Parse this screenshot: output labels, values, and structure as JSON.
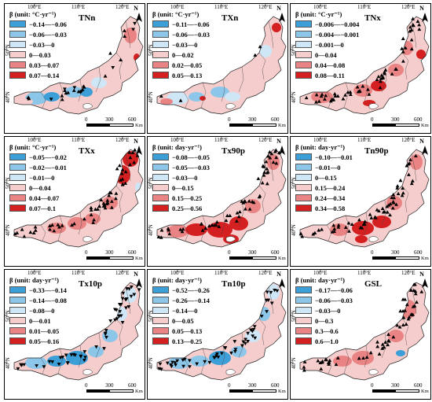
{
  "common": {
    "longitudes": [
      "100°E",
      "110°E",
      "120°E"
    ],
    "latitudes": [
      "50°N",
      "40°N"
    ],
    "north": "N",
    "scale": {
      "labels": [
        "0",
        "300",
        "600"
      ],
      "unit": "Km"
    }
  },
  "panels": [
    {
      "title": "TNn",
      "legend_title": "β (unit: °C·yr⁻¹)",
      "classes": [
        {
          "label": "−0.14—−0.06",
          "color": "#3d9fd8"
        },
        {
          "label": "−0.06—−0.03",
          "color": "#8cc7ea"
        },
        {
          "label": "−0.03—0",
          "color": "#cfe6f6"
        },
        {
          "label": "0—0.03",
          "color": "#f6cdcd"
        },
        {
          "label": "0.03—0.07",
          "color": "#ea8484"
        },
        {
          "label": "0.07—0.14",
          "color": "#d42020"
        }
      ],
      "markers": "mixed"
    },
    {
      "title": "TXn",
      "legend_title": "β (unit: °C·yr⁻¹)",
      "classes": [
        {
          "label": "−0.11—−0.06",
          "color": "#3d9fd8"
        },
        {
          "label": "−0.06—−0.03",
          "color": "#8cc7ea"
        },
        {
          "label": "−0.03—0",
          "color": "#cfe6f6"
        },
        {
          "label": "0—0.02",
          "color": "#f6cdcd"
        },
        {
          "label": "0.02—0.05",
          "color": "#ea8484"
        },
        {
          "label": "0.05—0.13",
          "color": "#d42020"
        }
      ],
      "markers": "sparse"
    },
    {
      "title": "TNx",
      "legend_title": "β (unit: °C·yr⁻¹)",
      "classes": [
        {
          "label": "−0.006—−0.004",
          "color": "#3d9fd8"
        },
        {
          "label": "−0.004—−0.001",
          "color": "#8cc7ea"
        },
        {
          "label": "−0.001—0",
          "color": "#cfe6f6"
        },
        {
          "label": "0—0.04",
          "color": "#f6cdcd"
        },
        {
          "label": "0.04—0.08",
          "color": "#ea8484"
        },
        {
          "label": "0.08—0.11",
          "color": "#d42020"
        }
      ],
      "markers": "up"
    },
    {
      "title": "TXx",
      "legend_title": "β (unit: °C·yr⁻¹)",
      "classes": [
        {
          "label": "−0.05—−0.02",
          "color": "#3d9fd8"
        },
        {
          "label": "−0.02—−0.01",
          "color": "#8cc7ea"
        },
        {
          "label": "−0.01—0",
          "color": "#cfe6f6"
        },
        {
          "label": "0—0.04",
          "color": "#f6cdcd"
        },
        {
          "label": "0.04—0.07",
          "color": "#ea8484"
        },
        {
          "label": "0.07—0.1",
          "color": "#d42020"
        }
      ],
      "markers": "up"
    },
    {
      "title": "Tx90p",
      "legend_title": "β (unit: day·yr⁻¹)",
      "classes": [
        {
          "label": "−0.08—−0.05",
          "color": "#3d9fd8"
        },
        {
          "label": "−0.05—−0.03",
          "color": "#8cc7ea"
        },
        {
          "label": "−0.03—0",
          "color": "#cfe6f6"
        },
        {
          "label": "0—0.15",
          "color": "#f6cdcd"
        },
        {
          "label": "0.15—0.25",
          "color": "#ea8484"
        },
        {
          "label": "0.25—0.56",
          "color": "#d42020"
        }
      ],
      "markers": "up"
    },
    {
      "title": "Tn90p",
      "legend_title": "β (unit: day·yr⁻¹)",
      "classes": [
        {
          "label": "−0.10—−0.01",
          "color": "#3d9fd8"
        },
        {
          "label": "−0.01—0",
          "color": "#8cc7ea"
        },
        {
          "label": "0—0.15",
          "color": "#cfe6f6"
        },
        {
          "label": "0.15—0.24",
          "color": "#f6cdcd"
        },
        {
          "label": "0.24—0.34",
          "color": "#ea8484"
        },
        {
          "label": "0.34—0.58",
          "color": "#d42020"
        }
      ],
      "markers": "up"
    },
    {
      "title": "Tx10p",
      "legend_title": "β (unit: day·yr⁻¹)",
      "classes": [
        {
          "label": "−0.33—−0.14",
          "color": "#3d9fd8"
        },
        {
          "label": "−0.14—−0.08",
          "color": "#8cc7ea"
        },
        {
          "label": "−0.08—0",
          "color": "#cfe6f6"
        },
        {
          "label": "0—0.01",
          "color": "#f6cdcd"
        },
        {
          "label": "0.01—0.05",
          "color": "#ea8484"
        },
        {
          "label": "0.05—0.16",
          "color": "#d42020"
        }
      ],
      "markers": "down"
    },
    {
      "title": "Tn10p",
      "legend_title": "β (unit: day·yr⁻¹)",
      "classes": [
        {
          "label": "−0.52—−0.26",
          "color": "#3d9fd8"
        },
        {
          "label": "−0.26—−0.14",
          "color": "#8cc7ea"
        },
        {
          "label": "−0.14—0",
          "color": "#cfe6f6"
        },
        {
          "label": "0—0.05",
          "color": "#f6cdcd"
        },
        {
          "label": "0.05—0.13",
          "color": "#ea8484"
        },
        {
          "label": "0.13—0.25",
          "color": "#d42020"
        }
      ],
      "markers": "down"
    },
    {
      "title": "GSL",
      "legend_title": "β (unit: day·yr⁻¹)",
      "classes": [
        {
          "label": "−0.17—−0.06",
          "color": "#3d9fd8"
        },
        {
          "label": "−0.06—−0.03",
          "color": "#8cc7ea"
        },
        {
          "label": "−0.03—0",
          "color": "#cfe6f6"
        },
        {
          "label": "0—0.3",
          "color": "#f6cdcd"
        },
        {
          "label": "0.3—0.6",
          "color": "#ea8484"
        },
        {
          "label": "0.6—1.0",
          "color": "#d42020"
        }
      ],
      "markers": "up"
    }
  ]
}
